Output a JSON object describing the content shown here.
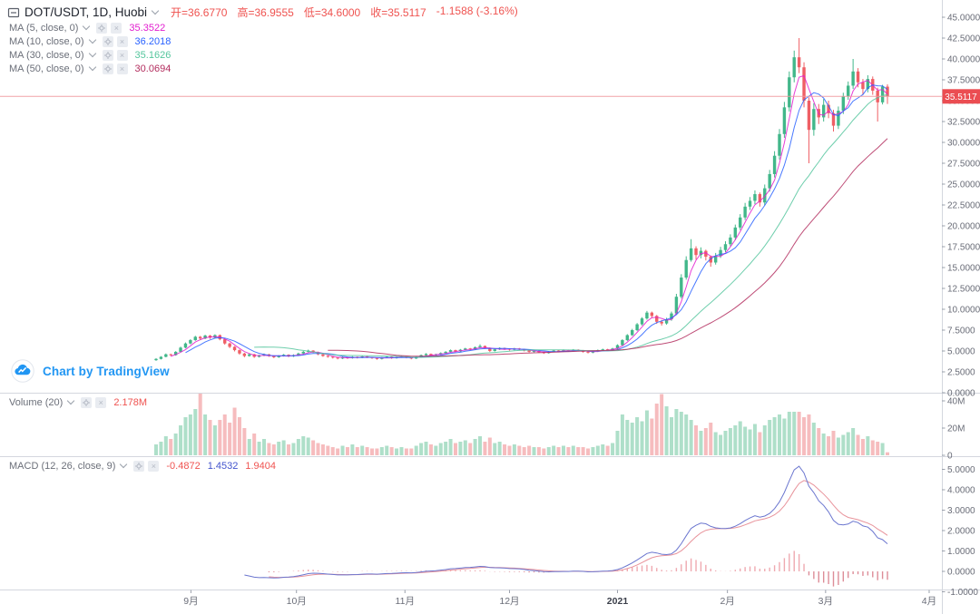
{
  "header": {
    "symbol_title": "DOT/USDT, 1D, Huobi",
    "ohlc_segments": [
      "开=36.6770",
      "高=36.9555",
      "低=34.6000",
      "收=35.5117",
      "-1.1588 (-3.16%)"
    ],
    "ma_rows": [
      {
        "label": "MA (5, close, 0)",
        "value": "35.3522"
      },
      {
        "label": "MA (10, close, 0)",
        "value": "36.2018"
      },
      {
        "label": "MA (30, close, 0)",
        "value": "35.1626"
      },
      {
        "label": "MA (50, close, 0)",
        "value": "30.0694"
      }
    ]
  },
  "volume_pane": {
    "label": "Volume (20)",
    "value": "2.178M"
  },
  "macd_pane": {
    "label": "MACD (12, 26, close, 9)",
    "values": [
      "-0.4872",
      "1.4532",
      "1.9404"
    ]
  },
  "attribution": {
    "text": "Chart by TradingView"
  },
  "price_label": "35.5117",
  "icons": {
    "settings": "gear-icon",
    "close": "×"
  },
  "colors": {
    "up": "#42b78a",
    "down": "#ef5f65",
    "vol_up": "#aedfc9",
    "vol_down": "#f6bcbe",
    "ma": [
      "#e21ecf",
      "#2962ff",
      "#55c69d",
      "#b32d5e"
    ],
    "macd_line": "#6b76cf",
    "macd_signal": "#e8939b",
    "macd_hist_pos": "#efa9b0",
    "macd_hist_neg": "#dd8d98",
    "macd_values": [
      "#ef5350",
      "#4354cd",
      "#ef5350"
    ],
    "ohlc_red": "#ef5350",
    "price_line": "#f0989e",
    "price_label_bg": "#eb4d52",
    "axis_text": "#6a6d78",
    "border": "#d4d7de",
    "tick": "#9aa0ab",
    "brand_blue": "#2196f3"
  },
  "chart_data": {
    "type": "candlestick+volume+macd",
    "title": "DOT/USDT, 1D, Huobi",
    "symbol": "DOT/USDT",
    "interval": "1D",
    "exchange": "Huobi",
    "last_price": 35.5117,
    "legend": [
      "MA 5",
      "MA 10",
      "MA 30",
      "MA 50",
      "Volume 20",
      "MACD 12 26 close 9"
    ],
    "price_axis": {
      "min": 0,
      "max": 47.5,
      "step": 2.5,
      "decimals": 4
    },
    "volume_axis": {
      "ticks": [
        {
          "label": "40M",
          "v": 40
        },
        {
          "label": "20M",
          "v": 20
        },
        {
          "label": "0",
          "v": 0
        }
      ]
    },
    "macd_axis": {
      "min": -1,
      "max": 5,
      "step": 1,
      "decimals": 4
    },
    "time_axis": [
      {
        "label": "9月",
        "bar": 7.1
      },
      {
        "label": "10月",
        "bar": 28.6
      },
      {
        "label": "11月",
        "bar": 50.7
      },
      {
        "label": "12月",
        "bar": 72.0
      },
      {
        "label": "2021",
        "bar": 94.0,
        "strong": true
      },
      {
        "label": "2月",
        "bar": 116.4
      },
      {
        "label": "3月",
        "bar": 136.4
      },
      {
        "label": "4月",
        "bar": 157.5
      }
    ],
    "ma_windows": [
      4,
      7,
      21,
      36
    ],
    "macd_params": [
      9,
      19,
      6
    ],
    "candles": [
      [
        3.9,
        4.15,
        3.82,
        4.05
      ],
      [
        4.05,
        4.38,
        3.98,
        4.3
      ],
      [
        4.3,
        4.7,
        4.24,
        4.6
      ],
      [
        4.6,
        4.68,
        4.4,
        4.5
      ],
      [
        4.5,
        4.98,
        4.44,
        4.9
      ],
      [
        4.9,
        5.52,
        4.84,
        5.4
      ],
      [
        5.4,
        6.02,
        5.32,
        5.9
      ],
      [
        5.9,
        6.42,
        5.8,
        6.3
      ],
      [
        6.3,
        6.82,
        6.22,
        6.7
      ],
      [
        6.7,
        6.8,
        6.35,
        6.5
      ],
      [
        6.5,
        6.95,
        6.42,
        6.85
      ],
      [
        6.85,
        6.92,
        6.45,
        6.6
      ],
      [
        6.6,
        7.0,
        6.52,
        6.9
      ],
      [
        6.9,
        6.98,
        6.28,
        6.4
      ],
      [
        6.4,
        6.5,
        5.75,
        5.9
      ],
      [
        5.9,
        6.0,
        5.35,
        5.5
      ],
      [
        5.5,
        5.58,
        4.95,
        5.1
      ],
      [
        5.1,
        5.18,
        4.55,
        4.7
      ],
      [
        4.7,
        4.78,
        4.25,
        4.4
      ],
      [
        4.4,
        4.72,
        4.32,
        4.6
      ],
      [
        4.6,
        4.66,
        4.18,
        4.3
      ],
      [
        4.3,
        4.56,
        4.22,
        4.45
      ],
      [
        4.45,
        4.7,
        4.38,
        4.6
      ],
      [
        4.6,
        4.65,
        4.3,
        4.4
      ],
      [
        4.4,
        4.46,
        4.14,
        4.25
      ],
      [
        4.25,
        4.5,
        4.18,
        4.4
      ],
      [
        4.4,
        4.64,
        4.33,
        4.55
      ],
      [
        4.55,
        4.6,
        4.26,
        4.35
      ],
      [
        4.35,
        4.6,
        4.28,
        4.5
      ],
      [
        4.5,
        4.8,
        4.43,
        4.7
      ],
      [
        4.7,
        5.0,
        4.62,
        4.9
      ],
      [
        4.9,
        5.16,
        4.82,
        5.05
      ],
      [
        5.05,
        5.1,
        4.76,
        4.85
      ],
      [
        4.85,
        4.92,
        4.5,
        4.6
      ],
      [
        4.6,
        4.66,
        4.3,
        4.4
      ],
      [
        4.4,
        4.48,
        4.2,
        4.3
      ],
      [
        4.3,
        4.36,
        4.1,
        4.2
      ],
      [
        4.2,
        4.26,
        4.0,
        4.1
      ],
      [
        4.1,
        4.34,
        4.03,
        4.25
      ],
      [
        4.25,
        4.3,
        4.05,
        4.15
      ],
      [
        4.15,
        4.38,
        4.08,
        4.3
      ],
      [
        4.3,
        4.35,
        4.1,
        4.2
      ],
      [
        4.2,
        4.44,
        4.13,
        4.35
      ],
      [
        4.35,
        4.4,
        4.15,
        4.25
      ],
      [
        4.25,
        4.3,
        4.05,
        4.15
      ],
      [
        4.15,
        4.22,
        3.95,
        4.05
      ],
      [
        4.05,
        4.28,
        3.98,
        4.2
      ],
      [
        4.2,
        4.4,
        4.12,
        4.3
      ],
      [
        4.3,
        4.36,
        4.06,
        4.15
      ],
      [
        4.15,
        4.34,
        4.08,
        4.25
      ],
      [
        4.25,
        4.44,
        4.18,
        4.35
      ],
      [
        4.35,
        4.4,
        4.12,
        4.2
      ],
      [
        4.2,
        4.26,
        4.0,
        4.1
      ],
      [
        4.1,
        4.38,
        4.04,
        4.3
      ],
      [
        4.3,
        4.58,
        4.24,
        4.5
      ],
      [
        4.5,
        4.74,
        4.43,
        4.65
      ],
      [
        4.65,
        4.7,
        4.42,
        4.5
      ],
      [
        4.5,
        4.68,
        4.43,
        4.6
      ],
      [
        4.6,
        4.84,
        4.52,
        4.75
      ],
      [
        4.75,
        4.98,
        4.68,
        4.9
      ],
      [
        4.9,
        5.18,
        4.83,
        5.1
      ],
      [
        5.1,
        5.16,
        4.86,
        4.95
      ],
      [
        4.95,
        5.24,
        4.88,
        5.15
      ],
      [
        5.15,
        5.38,
        5.08,
        5.3
      ],
      [
        5.3,
        5.36,
        5.1,
        5.2
      ],
      [
        5.2,
        5.54,
        5.13,
        5.45
      ],
      [
        5.45,
        5.8,
        5.38,
        5.6
      ],
      [
        5.6,
        5.66,
        5.25,
        5.35
      ],
      [
        5.35,
        5.42,
        4.88,
        5.0
      ],
      [
        5.0,
        5.28,
        4.93,
        5.2
      ],
      [
        5.2,
        5.44,
        5.12,
        5.35
      ],
      [
        5.35,
        5.4,
        5.14,
        5.25
      ],
      [
        5.25,
        5.32,
        5.05,
        5.15
      ],
      [
        5.15,
        5.38,
        5.08,
        5.3
      ],
      [
        5.3,
        5.36,
        5.1,
        5.2
      ],
      [
        5.2,
        5.26,
        4.95,
        5.05
      ],
      [
        5.05,
        5.12,
        4.8,
        4.9
      ],
      [
        4.9,
        5.08,
        4.83,
        5.0
      ],
      [
        5.0,
        5.06,
        4.76,
        4.85
      ],
      [
        4.85,
        4.92,
        4.65,
        4.75
      ],
      [
        4.75,
        4.98,
        4.68,
        4.9
      ],
      [
        4.9,
        5.13,
        4.83,
        5.05
      ],
      [
        5.05,
        5.1,
        4.86,
        4.95
      ],
      [
        4.95,
        5.18,
        4.88,
        5.1
      ],
      [
        5.1,
        5.16,
        4.9,
        5.0
      ],
      [
        5.0,
        5.23,
        4.93,
        5.15
      ],
      [
        5.15,
        5.2,
        4.95,
        5.05
      ],
      [
        5.05,
        5.12,
        4.8,
        4.9
      ],
      [
        4.9,
        4.96,
        4.7,
        4.8
      ],
      [
        4.8,
        5.03,
        4.73,
        4.95
      ],
      [
        4.95,
        5.18,
        4.88,
        5.1
      ],
      [
        5.1,
        5.28,
        5.03,
        5.2
      ],
      [
        5.2,
        5.26,
        5.0,
        5.1
      ],
      [
        5.1,
        5.38,
        5.03,
        5.3
      ],
      [
        5.3,
        5.8,
        5.22,
        5.7
      ],
      [
        5.7,
        6.42,
        5.62,
        6.3
      ],
      [
        6.3,
        7.02,
        6.2,
        6.9
      ],
      [
        6.9,
        7.65,
        6.8,
        7.5
      ],
      [
        7.5,
        8.35,
        7.38,
        8.2
      ],
      [
        8.2,
        9.05,
        8.05,
        8.9
      ],
      [
        8.9,
        9.8,
        8.75,
        9.6
      ],
      [
        9.6,
        9.72,
        8.95,
        9.2
      ],
      [
        9.2,
        9.32,
        8.25,
        8.5
      ],
      [
        8.5,
        8.72,
        8.05,
        8.3
      ],
      [
        8.3,
        8.98,
        8.15,
        8.8
      ],
      [
        8.8,
        9.72,
        8.62,
        9.5
      ],
      [
        9.5,
        11.85,
        9.35,
        11.5
      ],
      [
        11.5,
        14.2,
        11.3,
        13.8
      ],
      [
        13.8,
        16.35,
        13.55,
        15.9
      ],
      [
        15.9,
        18.4,
        15.7,
        17.3
      ],
      [
        17.3,
        17.55,
        15.95,
        16.5
      ],
      [
        16.5,
        17.42,
        16.1,
        17.0
      ],
      [
        17.0,
        17.15,
        15.85,
        16.3
      ],
      [
        16.3,
        16.45,
        15.1,
        15.6
      ],
      [
        15.6,
        16.75,
        15.35,
        16.4
      ],
      [
        16.4,
        17.48,
        16.15,
        17.1
      ],
      [
        17.1,
        18.15,
        16.85,
        17.8
      ],
      [
        17.8,
        18.98,
        17.55,
        18.6
      ],
      [
        18.6,
        20.15,
        18.3,
        19.8
      ],
      [
        19.8,
        21.4,
        19.5,
        21.0
      ],
      [
        21.0,
        22.75,
        20.7,
        22.3
      ],
      [
        22.3,
        23.45,
        21.9,
        23.0
      ],
      [
        23.0,
        24.25,
        22.6,
        23.8
      ],
      [
        23.8,
        24.0,
        22.3,
        22.8
      ],
      [
        22.8,
        24.95,
        22.45,
        24.5
      ],
      [
        24.5,
        26.7,
        24.1,
        26.2
      ],
      [
        26.2,
        28.95,
        25.8,
        28.4
      ],
      [
        28.4,
        31.6,
        27.95,
        31.0
      ],
      [
        31.0,
        34.85,
        30.55,
        34.2
      ],
      [
        34.2,
        38.5,
        33.7,
        37.8
      ],
      [
        37.8,
        41.0,
        37.2,
        40.2
      ],
      [
        40.2,
        42.5,
        38.3,
        39.0
      ],
      [
        39.0,
        39.6,
        34.2,
        35.0
      ],
      [
        35.0,
        35.4,
        27.5,
        31.5
      ],
      [
        31.5,
        34.7,
        30.8,
        34.0
      ],
      [
        34.0,
        34.6,
        32.2,
        33.0
      ],
      [
        33.0,
        35.2,
        32.5,
        34.5
      ],
      [
        34.5,
        35.0,
        32.9,
        33.5
      ],
      [
        33.5,
        33.9,
        31.3,
        32.0
      ],
      [
        32.0,
        34.3,
        31.6,
        33.8
      ],
      [
        33.8,
        35.95,
        33.4,
        35.5
      ],
      [
        35.5,
        37.3,
        35.1,
        36.8
      ],
      [
        36.8,
        40.0,
        36.4,
        38.5
      ],
      [
        38.5,
        38.9,
        36.6,
        37.2
      ],
      [
        37.2,
        37.6,
        35.7,
        36.4
      ],
      [
        36.4,
        38.05,
        36.0,
        37.6
      ],
      [
        37.6,
        37.9,
        35.7,
        36.2
      ],
      [
        36.2,
        36.55,
        32.5,
        34.8
      ],
      [
        34.8,
        36.9,
        34.55,
        36.7
      ],
      [
        36.68,
        36.96,
        34.6,
        35.51
      ]
    ],
    "volumes_m": [
      8,
      10,
      14,
      12,
      16,
      22,
      28,
      30,
      34,
      46,
      30,
      26,
      22,
      26,
      30,
      24,
      35,
      28,
      20,
      12,
      16,
      10,
      12,
      9,
      8,
      10,
      11,
      8,
      9,
      12,
      14,
      13,
      11,
      9,
      8,
      7,
      6,
      5,
      7,
      6,
      8,
      6,
      7,
      6,
      5,
      5,
      6,
      7,
      6,
      5,
      6,
      5,
      5,
      7,
      9,
      10,
      8,
      7,
      9,
      10,
      12,
      9,
      10,
      11,
      9,
      12,
      14,
      10,
      13,
      9,
      10,
      8,
      7,
      8,
      7,
      6,
      7,
      6,
      6,
      5,
      6,
      7,
      6,
      7,
      6,
      7,
      6,
      6,
      5,
      6,
      7,
      8,
      7,
      9,
      18,
      30,
      26,
      24,
      28,
      25,
      33,
      27,
      38,
      45,
      36,
      28,
      34,
      32,
      30,
      26,
      22,
      18,
      20,
      24,
      17,
      15,
      18,
      20,
      22,
      25,
      21,
      19,
      23,
      17,
      22,
      26,
      28,
      30,
      27,
      32,
      32,
      32,
      28,
      30,
      24,
      20,
      16,
      14,
      18,
      13,
      15,
      17,
      20,
      15,
      12,
      14,
      11,
      10,
      9,
      2.2
    ]
  }
}
